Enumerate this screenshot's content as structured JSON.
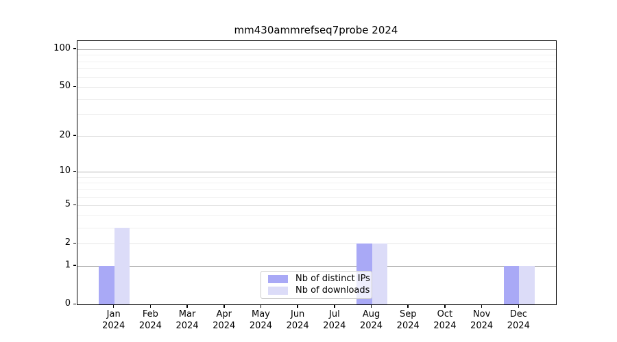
{
  "title": "mm430ammrefseq7probe 2024",
  "chart_data": {
    "type": "bar",
    "title": "mm430ammrefseq7probe 2024",
    "scale": "log1p",
    "categories": [
      "Jan",
      "Feb",
      "Mar",
      "Apr",
      "May",
      "Jun",
      "Jul",
      "Aug",
      "Sep",
      "Oct",
      "Nov",
      "Dec"
    ],
    "year_label": "2024",
    "series": [
      {
        "name": "Nb of distinct IPs",
        "color": "#a9a9f6",
        "values": [
          1,
          0,
          0,
          0,
          0,
          0,
          0,
          2,
          0,
          0,
          0,
          1
        ]
      },
      {
        "name": "Nb of downloads",
        "color": "#dcdcf8",
        "values": [
          3,
          0,
          0,
          0,
          0,
          0,
          0,
          2,
          0,
          0,
          0,
          1
        ]
      }
    ],
    "yticks": [
      0,
      1,
      2,
      5,
      10,
      20,
      50,
      100
    ],
    "decade_yticks": [
      1,
      10,
      100
    ],
    "minor_yticks": [
      3,
      4,
      6,
      7,
      8,
      9,
      30,
      40,
      60,
      70,
      80,
      90
    ],
    "ylim": [
      0,
      116
    ],
    "xlim_units": [
      -1,
      12
    ],
    "bar_width_units": 0.42,
    "grid": "horizontal",
    "legend_position": "lower center",
    "frame_color": "#000000",
    "background_color": "#ffffff"
  }
}
